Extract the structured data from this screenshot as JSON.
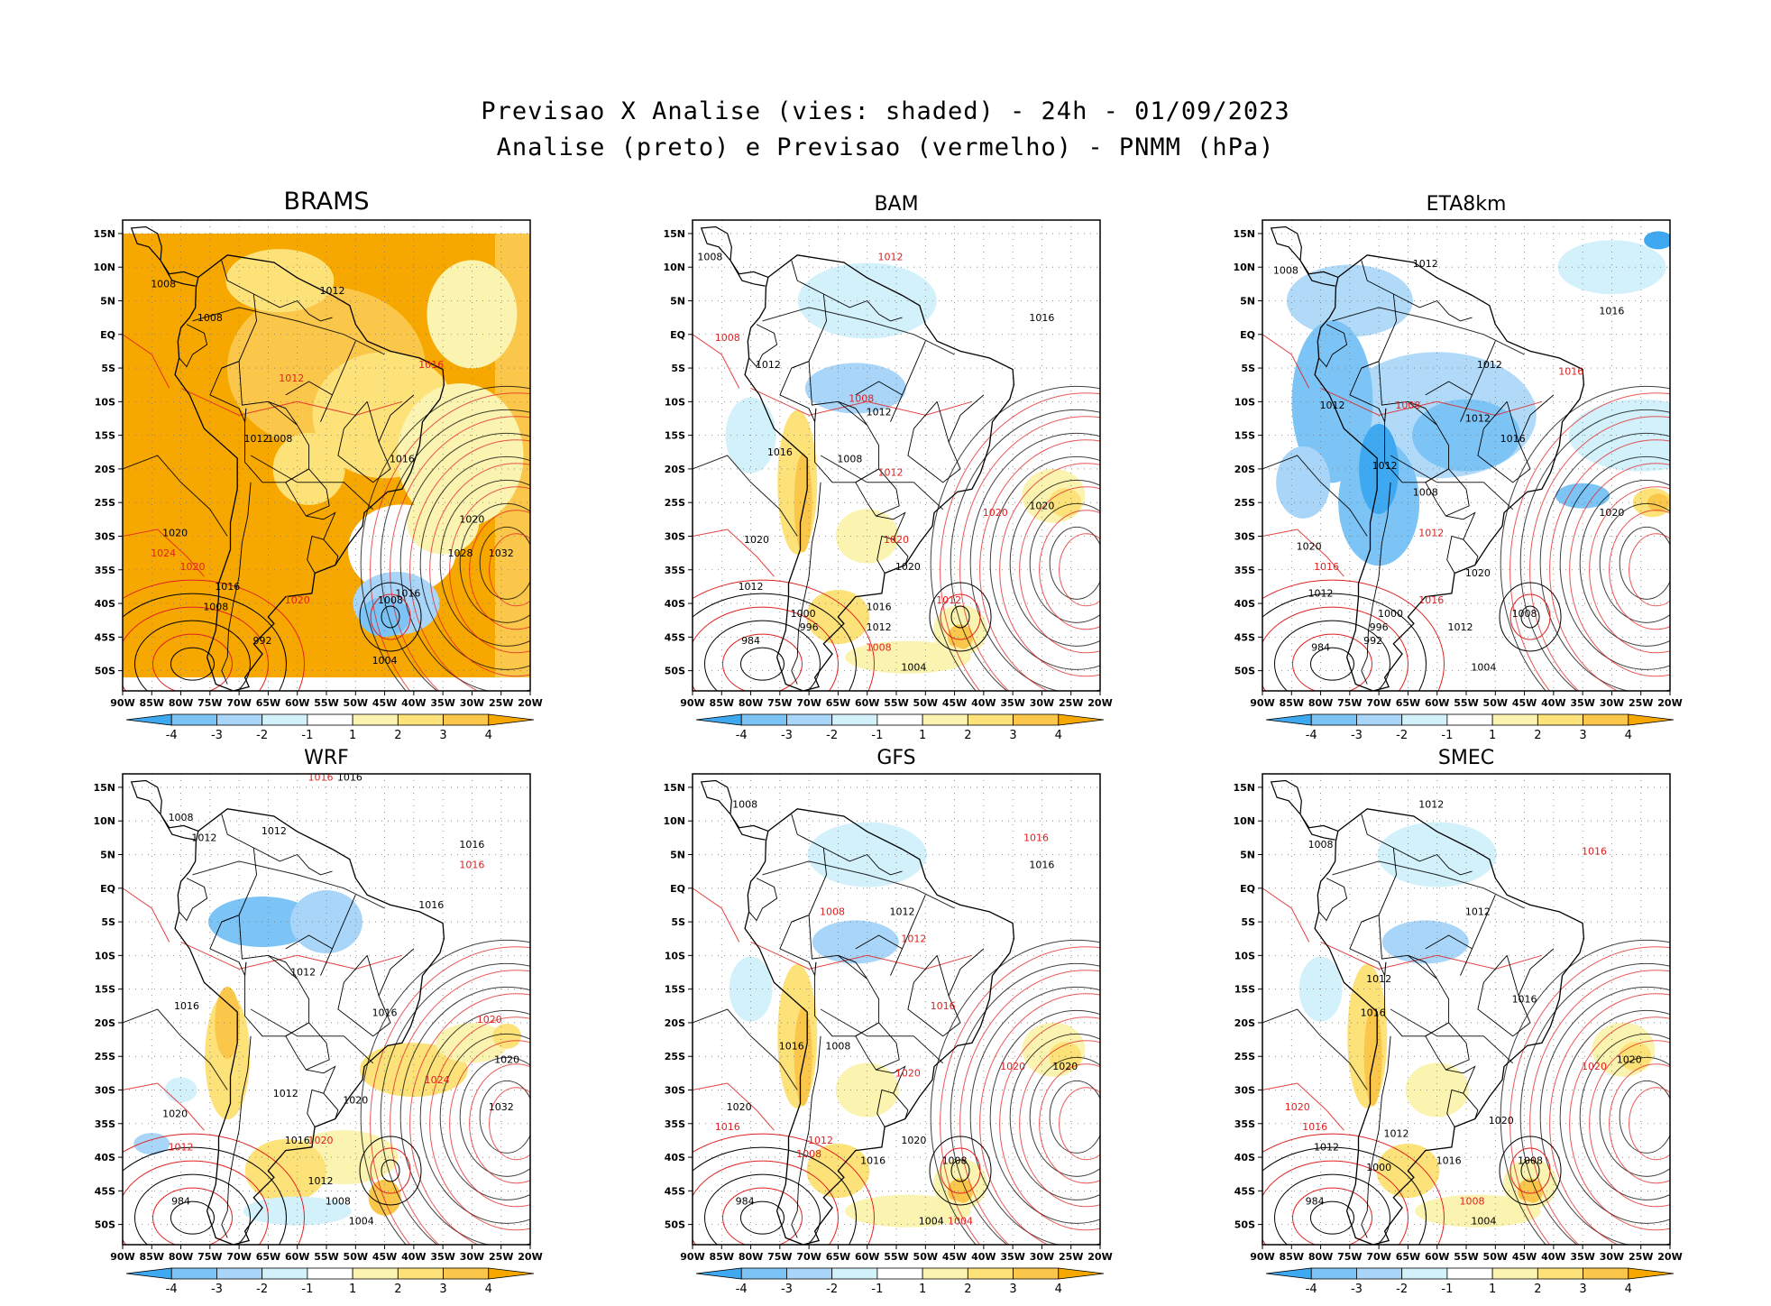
{
  "title": {
    "line1": "Previsao X Analise (vies: shaded) - 24h - 01/09/2023",
    "line2": "Analise (preto) e Previsao (vermelho) - PNMM (hPa)"
  },
  "lat_ticks": [
    "15N",
    "10N",
    "5N",
    "EQ",
    "5S",
    "10S",
    "15S",
    "20S",
    "25S",
    "30S",
    "35S",
    "40S",
    "45S",
    "50S"
  ],
  "lon_ticks": [
    "90W",
    "85W",
    "80W",
    "75W",
    "70W",
    "65W",
    "60W",
    "55W",
    "50W",
    "45W",
    "40W",
    "35W",
    "30W",
    "25W",
    "20W"
  ],
  "colorbar": {
    "labels": [
      "-4",
      "-3",
      "-2",
      "-1",
      "1",
      "2",
      "3",
      "4"
    ],
    "colors": [
      "#3ea8f0",
      "#7cc4f5",
      "#a9d6f8",
      "#d3f1fb",
      "#ffffff",
      "#fbf3b0",
      "#fde27a",
      "#fbc74a",
      "#f6a800"
    ]
  },
  "colors": {
    "analysis": "#000000",
    "forecast": "#e02020"
  },
  "panels": [
    {
      "name": "BRAMS",
      "theme": "warm",
      "labels": [
        {
          "t": "1008",
          "c": "a",
          "lon": -83,
          "lat": 7
        },
        {
          "t": "1008",
          "c": "a",
          "lon": -75,
          "lat": 2
        },
        {
          "t": "1012",
          "c": "a",
          "lon": -54,
          "lat": 6
        },
        {
          "t": "1012",
          "c": "f",
          "lon": -61,
          "lat": -7
        },
        {
          "t": "1016",
          "c": "f",
          "lon": -37,
          "lat": -5
        },
        {
          "t": "1012",
          "c": "a",
          "lon": -67,
          "lat": -16
        },
        {
          "t": "1008",
          "c": "a",
          "lon": -63,
          "lat": -16
        },
        {
          "t": "1016",
          "c": "a",
          "lon": -42,
          "lat": -19
        },
        {
          "t": "1020",
          "c": "a",
          "lon": -30,
          "lat": -28
        },
        {
          "t": "1028",
          "c": "a",
          "lon": -32,
          "lat": -33
        },
        {
          "t": "1032",
          "c": "a",
          "lon": -25,
          "lat": -33
        },
        {
          "t": "1020",
          "c": "a",
          "lon": -81,
          "lat": -30
        },
        {
          "t": "1024",
          "c": "f",
          "lon": -83,
          "lat": -33
        },
        {
          "t": "1020",
          "c": "f",
          "lon": -78,
          "lat": -35
        },
        {
          "t": "1016",
          "c": "a",
          "lon": -72,
          "lat": -38
        },
        {
          "t": "1020",
          "c": "f",
          "lon": -60,
          "lat": -40
        },
        {
          "t": "1016",
          "c": "a",
          "lon": -41,
          "lat": -39
        },
        {
          "t": "1008",
          "c": "a",
          "lon": -44,
          "lat": -40
        },
        {
          "t": "1008",
          "c": "a",
          "lon": -74,
          "lat": -41
        },
        {
          "t": "1004",
          "c": "a",
          "lon": -45,
          "lat": -49
        },
        {
          "t": "992",
          "c": "a",
          "lon": -66,
          "lat": -46
        }
      ]
    },
    {
      "name": "BAM",
      "theme": "mixed",
      "labels": [
        {
          "t": "1008",
          "c": "a",
          "lon": -87,
          "lat": 11
        },
        {
          "t": "1012",
          "c": "f",
          "lon": -56,
          "lat": 11
        },
        {
          "t": "1008",
          "c": "f",
          "lon": -84,
          "lat": -1
        },
        {
          "t": "1016",
          "c": "a",
          "lon": -30,
          "lat": 2
        },
        {
          "t": "1012",
          "c": "a",
          "lon": -77,
          "lat": -5
        },
        {
          "t": "1008",
          "c": "f",
          "lon": -61,
          "lat": -10
        },
        {
          "t": "1012",
          "c": "a",
          "lon": -58,
          "lat": -12
        },
        {
          "t": "1016",
          "c": "a",
          "lon": -75,
          "lat": -18
        },
        {
          "t": "1008",
          "c": "a",
          "lon": -63,
          "lat": -19
        },
        {
          "t": "1012",
          "c": "f",
          "lon": -56,
          "lat": -21
        },
        {
          "t": "1020",
          "c": "a",
          "lon": -30,
          "lat": -26
        },
        {
          "t": "1020",
          "c": "f",
          "lon": -38,
          "lat": -27
        },
        {
          "t": "1020",
          "c": "a",
          "lon": -79,
          "lat": -31
        },
        {
          "t": "1020",
          "c": "f",
          "lon": -55,
          "lat": -31
        },
        {
          "t": "1020",
          "c": "a",
          "lon": -53,
          "lat": -35
        },
        {
          "t": "1012",
          "c": "a",
          "lon": -80,
          "lat": -38
        },
        {
          "t": "1016",
          "c": "a",
          "lon": -58,
          "lat": -41
        },
        {
          "t": "1012",
          "c": "f",
          "lon": -46,
          "lat": -40
        },
        {
          "t": "1000",
          "c": "a",
          "lon": -71,
          "lat": -42
        },
        {
          "t": "996",
          "c": "a",
          "lon": -70,
          "lat": -44
        },
        {
          "t": "1012",
          "c": "a",
          "lon": -58,
          "lat": -44
        },
        {
          "t": "1008",
          "c": "f",
          "lon": -58,
          "lat": -47
        },
        {
          "t": "984",
          "c": "a",
          "lon": -80,
          "lat": -46
        },
        {
          "t": "1004",
          "c": "a",
          "lon": -52,
          "lat": -50
        }
      ]
    },
    {
      "name": "ETA8km",
      "theme": "cool",
      "labels": [
        {
          "t": "1008",
          "c": "a",
          "lon": -86,
          "lat": 9
        },
        {
          "t": "1012",
          "c": "a",
          "lon": -62,
          "lat": 10
        },
        {
          "t": "1016",
          "c": "a",
          "lon": -30,
          "lat": 3
        },
        {
          "t": "1012",
          "c": "a",
          "lon": -51,
          "lat": -5
        },
        {
          "t": "1012",
          "c": "a",
          "lon": -78,
          "lat": -11
        },
        {
          "t": "1016",
          "c": "f",
          "lon": -37,
          "lat": -6
        },
        {
          "t": "1008",
          "c": "f",
          "lon": -65,
          "lat": -11
        },
        {
          "t": "1012",
          "c": "a",
          "lon": -53,
          "lat": -13
        },
        {
          "t": "1016",
          "c": "a",
          "lon": -47,
          "lat": -16
        },
        {
          "t": "1012",
          "c": "a",
          "lon": -69,
          "lat": -20
        },
        {
          "t": "1008",
          "c": "a",
          "lon": -62,
          "lat": -24
        },
        {
          "t": "1020",
          "c": "a",
          "lon": -30,
          "lat": -27
        },
        {
          "t": "1012",
          "c": "f",
          "lon": -61,
          "lat": -30
        },
        {
          "t": "1020",
          "c": "a",
          "lon": -82,
          "lat": -32
        },
        {
          "t": "1016",
          "c": "f",
          "lon": -79,
          "lat": -35
        },
        {
          "t": "1020",
          "c": "a",
          "lon": -53,
          "lat": -36
        },
        {
          "t": "1012",
          "c": "a",
          "lon": -80,
          "lat": -39
        },
        {
          "t": "1016",
          "c": "f",
          "lon": -61,
          "lat": -40
        },
        {
          "t": "1008",
          "c": "a",
          "lon": -45,
          "lat": -42
        },
        {
          "t": "1000",
          "c": "a",
          "lon": -68,
          "lat": -42
        },
        {
          "t": "996",
          "c": "a",
          "lon": -70,
          "lat": -44
        },
        {
          "t": "984",
          "c": "a",
          "lon": -80,
          "lat": -47
        },
        {
          "t": "992",
          "c": "a",
          "lon": -71,
          "lat": -46
        },
        {
          "t": "1012",
          "c": "a",
          "lon": -56,
          "lat": -44
        },
        {
          "t": "1004",
          "c": "a",
          "lon": -52,
          "lat": -50
        }
      ]
    },
    {
      "name": "WRF",
      "theme": "mixedcool",
      "labels": [
        {
          "t": "1016",
          "c": "f",
          "lon": -56,
          "lat": 16
        },
        {
          "t": "1016",
          "c": "a",
          "lon": -51,
          "lat": 16
        },
        {
          "t": "1008",
          "c": "a",
          "lon": -80,
          "lat": 10
        },
        {
          "t": "1012",
          "c": "a",
          "lon": -64,
          "lat": 8
        },
        {
          "t": "1012",
          "c": "a",
          "lon": -76,
          "lat": 7
        },
        {
          "t": "1016",
          "c": "a",
          "lon": -30,
          "lat": 6
        },
        {
          "t": "1016",
          "c": "f",
          "lon": -30,
          "lat": 3
        },
        {
          "t": "1016",
          "c": "a",
          "lon": -37,
          "lat": -3
        },
        {
          "t": "1012",
          "c": "a",
          "lon": -59,
          "lat": -13
        },
        {
          "t": "1016",
          "c": "a",
          "lon": -79,
          "lat": -18
        },
        {
          "t": "1016",
          "c": "a",
          "lon": -45,
          "lat": -19
        },
        {
          "t": "1020",
          "c": "f",
          "lon": -27,
          "lat": -20
        },
        {
          "t": "1020",
          "c": "a",
          "lon": -24,
          "lat": -26
        },
        {
          "t": "1012",
          "c": "a",
          "lon": -62,
          "lat": -31
        },
        {
          "t": "1024",
          "c": "f",
          "lon": -36,
          "lat": -29
        },
        {
          "t": "1020",
          "c": "a",
          "lon": -50,
          "lat": -32
        },
        {
          "t": "1032",
          "c": "a",
          "lon": -25,
          "lat": -33
        },
        {
          "t": "1020",
          "c": "a",
          "lon": -81,
          "lat": -34
        },
        {
          "t": "1012",
          "c": "f",
          "lon": -80,
          "lat": -39
        },
        {
          "t": "1016",
          "c": "a",
          "lon": -60,
          "lat": -38
        },
        {
          "t": "1020",
          "c": "f",
          "lon": -56,
          "lat": -38
        },
        {
          "t": "1012",
          "c": "a",
          "lon": -56,
          "lat": -44
        },
        {
          "t": "1008",
          "c": "a",
          "lon": -53,
          "lat": -47
        },
        {
          "t": "984",
          "c": "a",
          "lon": -80,
          "lat": -47
        },
        {
          "t": "1004",
          "c": "a",
          "lon": -49,
          "lat": -50
        }
      ]
    },
    {
      "name": "GFS",
      "theme": "mixed",
      "labels": [
        {
          "t": "1008",
          "c": "a",
          "lon": -81,
          "lat": 12
        },
        {
          "t": "1016",
          "c": "f",
          "lon": -31,
          "lat": 7
        },
        {
          "t": "1016",
          "c": "a",
          "lon": -30,
          "lat": 3
        },
        {
          "t": "1008",
          "c": "f",
          "lon": -66,
          "lat": -4
        },
        {
          "t": "1012",
          "c": "a",
          "lon": -54,
          "lat": -4
        },
        {
          "t": "1012",
          "c": "f",
          "lon": -52,
          "lat": -8
        },
        {
          "t": "1016",
          "c": "f",
          "lon": -47,
          "lat": -18
        },
        {
          "t": "1016",
          "c": "a",
          "lon": -73,
          "lat": -24
        },
        {
          "t": "1008",
          "c": "a",
          "lon": -65,
          "lat": -24
        },
        {
          "t": "1020",
          "c": "a",
          "lon": -26,
          "lat": -27
        },
        {
          "t": "1020",
          "c": "f",
          "lon": -35,
          "lat": -27
        },
        {
          "t": "1020",
          "c": "f",
          "lon": -53,
          "lat": -28
        },
        {
          "t": "1020",
          "c": "a",
          "lon": -82,
          "lat": -33
        },
        {
          "t": "1016",
          "c": "f",
          "lon": -84,
          "lat": -36
        },
        {
          "t": "1020",
          "c": "a",
          "lon": -52,
          "lat": -38
        },
        {
          "t": "1012",
          "c": "f",
          "lon": -68,
          "lat": -38
        },
        {
          "t": "1016",
          "c": "a",
          "lon": -59,
          "lat": -41
        },
        {
          "t": "1008",
          "c": "a",
          "lon": -45,
          "lat": -41
        },
        {
          "t": "1008",
          "c": "f",
          "lon": -70,
          "lat": -40
        },
        {
          "t": "984",
          "c": "a",
          "lon": -81,
          "lat": -47
        },
        {
          "t": "1004",
          "c": "a",
          "lon": -49,
          "lat": -50
        },
        {
          "t": "1004",
          "c": "f",
          "lon": -44,
          "lat": -50
        }
      ]
    },
    {
      "name": "SMEC",
      "theme": "mixed",
      "labels": [
        {
          "t": "1012",
          "c": "a",
          "lon": -61,
          "lat": 12
        },
        {
          "t": "1008",
          "c": "a",
          "lon": -80,
          "lat": 6
        },
        {
          "t": "1016",
          "c": "f",
          "lon": -33,
          "lat": 5
        },
        {
          "t": "1012",
          "c": "a",
          "lon": -53,
          "lat": -4
        },
        {
          "t": "1012",
          "c": "a",
          "lon": -70,
          "lat": -14
        },
        {
          "t": "1016",
          "c": "a",
          "lon": -45,
          "lat": -17
        },
        {
          "t": "1016",
          "c": "a",
          "lon": -71,
          "lat": -19
        },
        {
          "t": "1020",
          "c": "a",
          "lon": -27,
          "lat": -26
        },
        {
          "t": "1020",
          "c": "f",
          "lon": -33,
          "lat": -27
        },
        {
          "t": "1020",
          "c": "f",
          "lon": -84,
          "lat": -33
        },
        {
          "t": "1012",
          "c": "a",
          "lon": -67,
          "lat": -37
        },
        {
          "t": "1016",
          "c": "f",
          "lon": -81,
          "lat": -36
        },
        {
          "t": "1020",
          "c": "a",
          "lon": -49,
          "lat": -35
        },
        {
          "t": "1012",
          "c": "a",
          "lon": -79,
          "lat": -39
        },
        {
          "t": "1016",
          "c": "a",
          "lon": -58,
          "lat": -41
        },
        {
          "t": "1008",
          "c": "a",
          "lon": -44,
          "lat": -41
        },
        {
          "t": "1000",
          "c": "a",
          "lon": -70,
          "lat": -42
        },
        {
          "t": "1008",
          "c": "f",
          "lon": -54,
          "lat": -47
        },
        {
          "t": "984",
          "c": "a",
          "lon": -81,
          "lat": -47
        },
        {
          "t": "1004",
          "c": "a",
          "lon": -52,
          "lat": -50
        }
      ]
    }
  ]
}
